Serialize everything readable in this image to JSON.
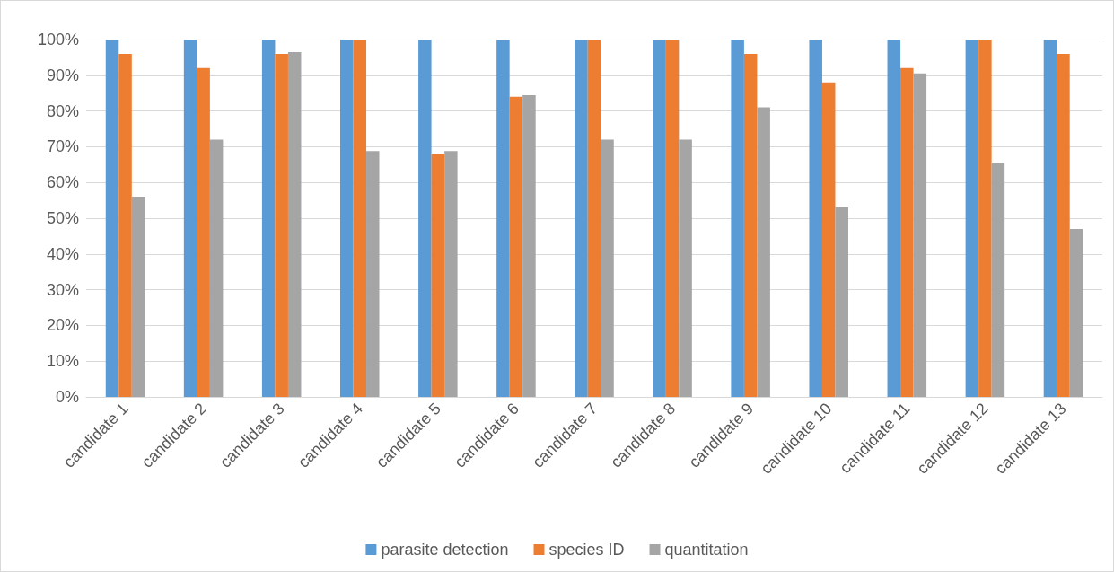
{
  "chart_data": {
    "type": "bar",
    "categories": [
      "candidate 1",
      "candidate 2",
      "candidate 3",
      "candidate 4",
      "candidate 5",
      "candidate 6",
      "candidate 7",
      "candidate 8",
      "candidate 9",
      "candidate 10",
      "candidate 11",
      "candidate 12",
      "candidate 13"
    ],
    "series": [
      {
        "name": "parasite detection",
        "color": "#5b9bd5",
        "values": [
          100,
          100,
          100,
          100,
          100,
          100,
          100,
          100,
          100,
          100,
          100,
          100,
          100
        ]
      },
      {
        "name": "species ID",
        "color": "#ed7d31",
        "values": [
          96,
          92,
          96,
          100,
          68,
          84,
          100,
          100,
          96,
          88,
          92,
          100,
          96
        ]
      },
      {
        "name": "quantitation",
        "color": "#a5a5a5",
        "values": [
          56,
          72,
          96.5,
          68.8,
          68.8,
          84.4,
          72,
          72,
          81,
          53,
          90.5,
          65.5,
          47
        ]
      }
    ],
    "ylim": [
      0,
      100
    ],
    "yticks": [
      {
        "value": 0,
        "label": "0%"
      },
      {
        "value": 10,
        "label": "10%"
      },
      {
        "value": 20,
        "label": "20%"
      },
      {
        "value": 30,
        "label": "30%"
      },
      {
        "value": 40,
        "label": "40%"
      },
      {
        "value": 50,
        "label": "50%"
      },
      {
        "value": 60,
        "label": "60%"
      },
      {
        "value": 70,
        "label": "70%"
      },
      {
        "value": 80,
        "label": "80%"
      },
      {
        "value": 90,
        "label": "90%"
      },
      {
        "value": 100,
        "label": "100%"
      }
    ],
    "grid": "y",
    "legend": "bottom"
  }
}
